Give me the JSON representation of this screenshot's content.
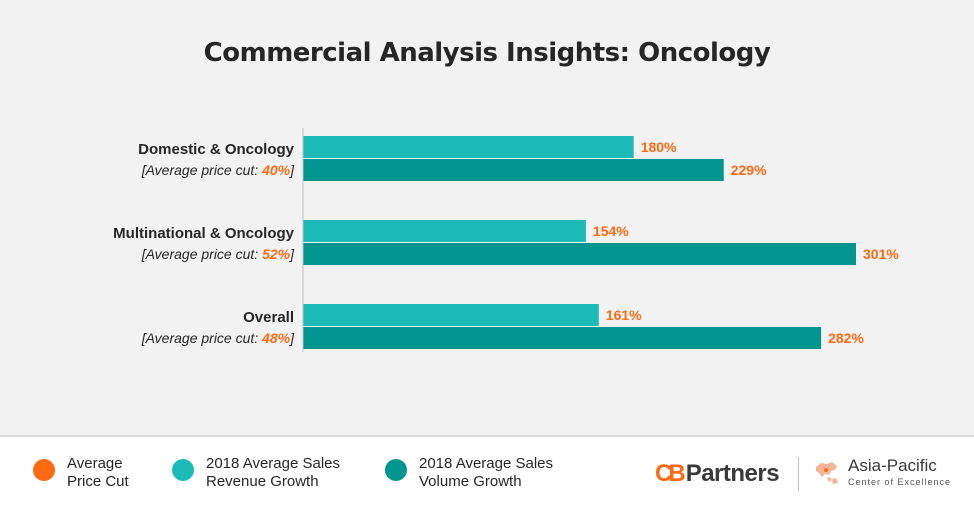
{
  "title": "Commercial Analysis Insights: Oncology",
  "colors": {
    "price_cut": "#ff6a13",
    "revenue": "#1dbbb8",
    "volume": "#00968f",
    "panel": "#f2f2f2"
  },
  "chart_data": {
    "type": "bar",
    "orientation": "horizontal",
    "categories": [
      {
        "name": "Domestic & Oncology",
        "price_cut_prefix": "[Average price cut: ",
        "price_cut": "40%",
        "price_cut_suffix": "]"
      },
      {
        "name": "Multinational & Oncology",
        "price_cut_prefix": "[Average price cut: ",
        "price_cut": "52%",
        "price_cut_suffix": "]"
      },
      {
        "name": "Overall",
        "price_cut_prefix": "[Average price cut: ",
        "price_cut": "48%",
        "price_cut_suffix": "]"
      }
    ],
    "series": [
      {
        "name": "2018 Average Sales Revenue Growth",
        "values": [
          180,
          154,
          161
        ],
        "labels": [
          "180%",
          "154%",
          "161%"
        ]
      },
      {
        "name": "2018 Average Sales Volume Growth",
        "values": [
          229,
          301,
          282
        ],
        "labels": [
          "229%",
          "301%",
          "282%"
        ]
      }
    ],
    "xlim": [
      0,
      301
    ],
    "grid": false,
    "legend_position": "bottom"
  },
  "legend": [
    {
      "line1": "Average",
      "line2": "Price Cut"
    },
    {
      "line1": "2018 Average Sales",
      "line2": "Revenue Growth"
    },
    {
      "line1": "2018 Average Sales",
      "line2": "Volume Growth"
    }
  ],
  "logos": {
    "cb_c": "C",
    "cb_b": "B",
    "cb_word": "Partners",
    "ap_title": "Asia-Pacific",
    "ap_subtitle": "Center of Excellence"
  }
}
